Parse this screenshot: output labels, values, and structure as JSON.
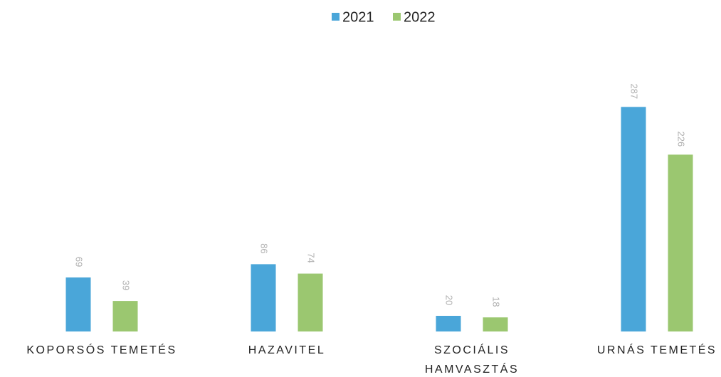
{
  "chart_data": {
    "type": "bar",
    "categories": [
      "KOPORSÓS TEMETÉS",
      "HAZAVITEL",
      "SZOCIÁLIS\nHAMVASZTÁS",
      "URNÁS TEMETÉS"
    ],
    "series": [
      {
        "name": "2021",
        "color": "#4aa6d9",
        "values": [
          69,
          86,
          20,
          287
        ]
      },
      {
        "name": "2022",
        "color": "#9bc770",
        "values": [
          39,
          74,
          18,
          226
        ]
      }
    ]
  }
}
